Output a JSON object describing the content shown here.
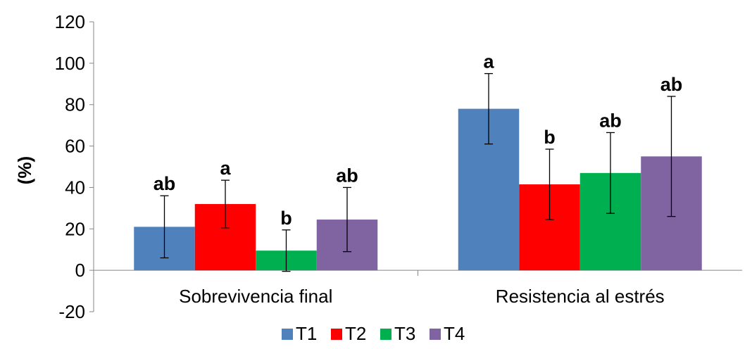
{
  "chart_data": {
    "type": "bar",
    "title": "",
    "xlabel": "",
    "ylabel": "(%)",
    "ylim": [
      -20,
      120
    ],
    "yticks": [
      -20,
      0,
      20,
      40,
      60,
      80,
      100,
      120
    ],
    "grid": false,
    "legend_position": "bottom",
    "categories": [
      "Sobrevivencia final",
      "Resistencia al estrés"
    ],
    "series": [
      {
        "name": "T1",
        "color": "#4f81bd",
        "values": [
          21,
          78
        ],
        "errors": [
          15,
          17
        ],
        "labels": [
          "ab",
          "a"
        ]
      },
      {
        "name": "T2",
        "color": "#ff0000",
        "values": [
          32,
          41.5
        ],
        "errors": [
          11.5,
          17
        ],
        "labels": [
          "a",
          "b"
        ]
      },
      {
        "name": "T3",
        "color": "#00b050",
        "values": [
          9.5,
          47
        ],
        "errors": [
          10,
          19.5
        ],
        "labels": [
          "b",
          "ab"
        ]
      },
      {
        "name": "T4",
        "color": "#8064a2",
        "values": [
          24.5,
          55
        ],
        "errors": [
          15.5,
          29
        ],
        "labels": [
          "ab",
          "ab"
        ]
      }
    ]
  }
}
